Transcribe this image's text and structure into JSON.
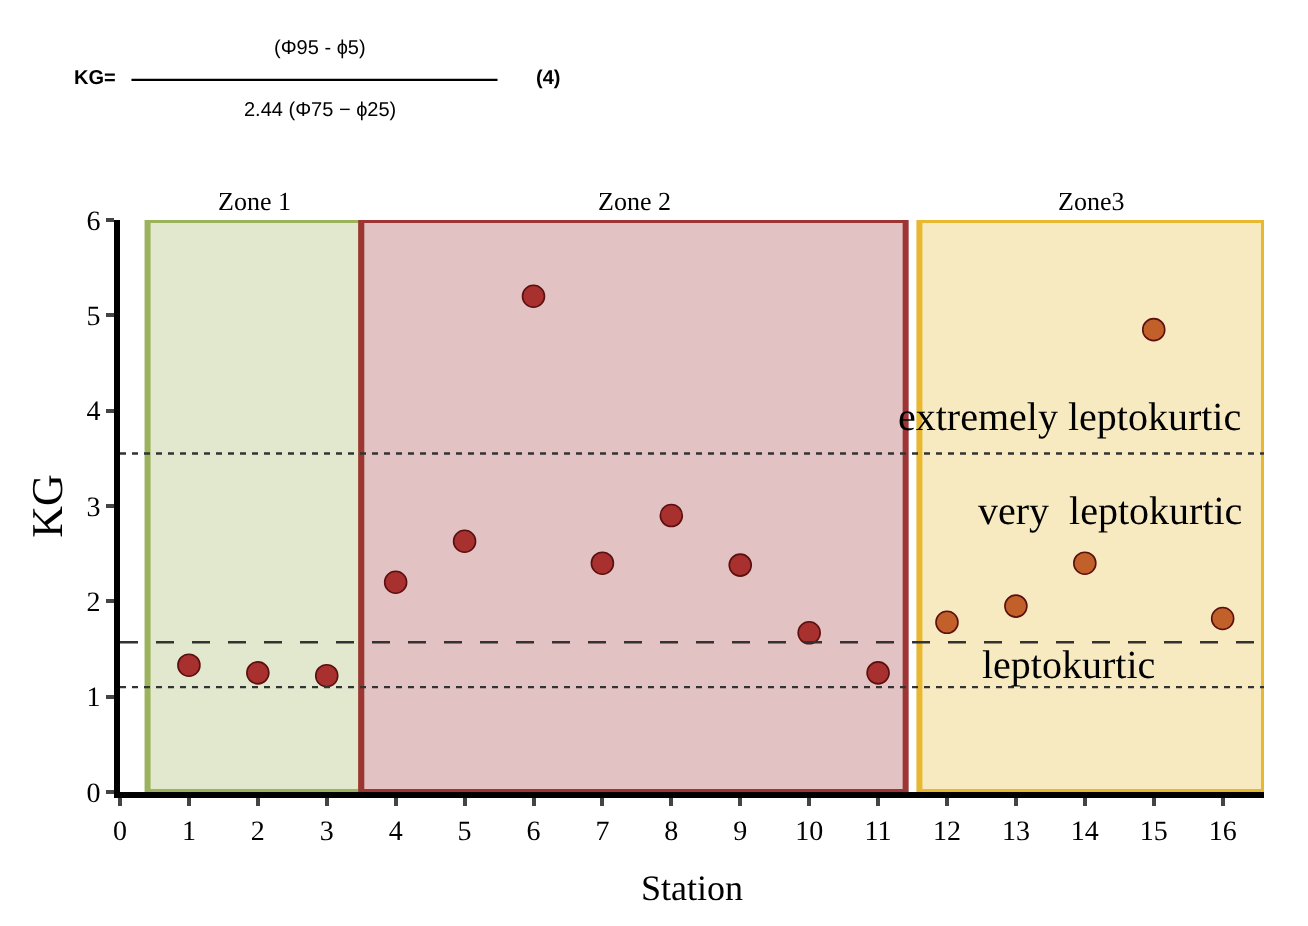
{
  "chart_data": {
    "type": "scatter",
    "xlabel": "Station",
    "ylabel": "KG",
    "x": [
      1,
      2,
      3,
      4,
      5,
      6,
      7,
      8,
      9,
      10,
      11,
      12,
      13,
      14,
      15,
      16
    ],
    "values": [
      1.33,
      1.25,
      1.22,
      2.2,
      2.63,
      5.2,
      2.4,
      2.9,
      2.38,
      1.67,
      1.25,
      1.78,
      1.95,
      2.4,
      4.85,
      1.82
    ],
    "colors": [
      "#a8302f",
      "#a8302f",
      "#a8302f",
      "#a8302f",
      "#a8302f",
      "#a8302f",
      "#a8302f",
      "#a8302f",
      "#a8302f",
      "#a8302f",
      "#a8302f",
      "#c2602a",
      "#c2602a",
      "#c2602a",
      "#c2602a",
      "#c2602a"
    ],
    "marker": "circle",
    "xlim": [
      0,
      16.6
    ],
    "xticks": [
      0,
      1,
      2,
      3,
      4,
      5,
      6,
      7,
      8,
      9,
      10,
      11,
      12,
      13,
      14,
      15,
      16
    ],
    "ylim": [
      0,
      6
    ],
    "yticks": [
      0,
      1,
      2,
      3,
      4,
      5,
      6
    ],
    "grid": false,
    "legend": false,
    "ref_lines": [
      {
        "axis": "y",
        "value": 3.55,
        "line_style": "dotted",
        "color": "#333333"
      },
      {
        "axis": "y",
        "value": 1.57,
        "line_style": "dashed",
        "color": "#333333"
      },
      {
        "axis": "y",
        "value": 1.1,
        "line_style": "dotted",
        "color": "#333333"
      }
    ],
    "bands": [
      {
        "axis": "x",
        "from": 0.4,
        "to": 3.5,
        "label": "Zone 1",
        "color": "#9bb35c"
      },
      {
        "axis": "x",
        "from": 3.5,
        "to": 11.4,
        "label": "Zone 2",
        "color": "#9e3535"
      },
      {
        "axis": "x",
        "from": 11.6,
        "to": 16.6,
        "label": "Zone3",
        "color": "#e8b830"
      }
    ],
    "annotations": [
      "KG=",
      "(Φ95 - ϕ5)",
      "2.44 (Φ75 − ϕ25)",
      "(4)",
      "extremely leptokurtic",
      "very  leptokurtic",
      "leptokurtic"
    ]
  }
}
